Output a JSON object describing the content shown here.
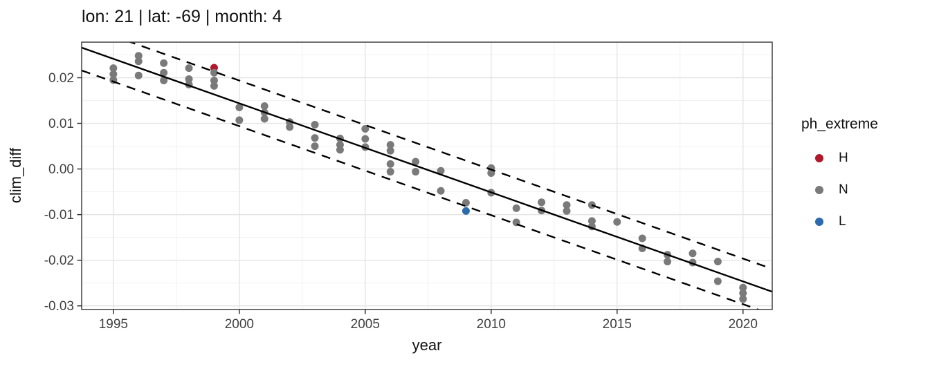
{
  "title": "lon: 21 | lat: -69 | month: 4",
  "chart_data": {
    "type": "scatter",
    "title": "lon: 21 | lat: -69 | month: 4",
    "xlabel": "year",
    "ylabel": "clim_diff",
    "xlim": [
      1993.74,
      2021.16
    ],
    "ylim": [
      -0.0308,
      0.0278
    ],
    "grid": "major+minor",
    "panel": {
      "background": "#FFFFFF",
      "border_color": "#404040",
      "major_grid_color": "#E4E4E4",
      "minor_grid_color": "#F1F1F1",
      "tick_color": "#333333"
    },
    "x_major_ticks": [
      {
        "value": 1995,
        "label": "1995"
      },
      {
        "value": 2000,
        "label": "2000"
      },
      {
        "value": 2005,
        "label": "2005"
      },
      {
        "value": 2010,
        "label": "2010"
      },
      {
        "value": 2015,
        "label": "2015"
      },
      {
        "value": 2020,
        "label": "2020"
      }
    ],
    "x_minor_ticks": [
      1997.5,
      2002.5,
      2007.5,
      2012.5,
      2017.5
    ],
    "y_major_ticks": [
      {
        "value": 0.02,
        "label": "0.02"
      },
      {
        "value": 0.01,
        "label": "0.01"
      },
      {
        "value": 0.0,
        "label": "0.00"
      },
      {
        "value": -0.01,
        "label": "-0.01"
      },
      {
        "value": -0.02,
        "label": "-0.02"
      },
      {
        "value": -0.03,
        "label": "-0.03"
      }
    ],
    "y_minor_ticks": [
      0.025,
      0.015,
      0.005,
      -0.005,
      -0.015,
      -0.025
    ],
    "point_radius": 5.5,
    "legend": {
      "title": "ph_extreme",
      "position": "right",
      "entries": [
        {
          "label": "H",
          "color": "#B2182B"
        },
        {
          "label": "N",
          "color": "#7A7A7A"
        },
        {
          "label": "L",
          "color": "#2A6BAD"
        }
      ]
    },
    "series": [
      {
        "name": "H",
        "color": "#B2182B",
        "points": [
          [
            1999,
            0.0222
          ]
        ]
      },
      {
        "name": "L",
        "color": "#2A6BAD",
        "points": [
          [
            2009,
            -0.0092
          ]
        ]
      },
      {
        "name": "N",
        "color": "#7A7A7A",
        "points": [
          [
            1995,
            0.0221
          ],
          [
            1995,
            0.0208
          ],
          [
            1995,
            0.0195
          ],
          [
            1996,
            0.0248
          ],
          [
            1996,
            0.0236
          ],
          [
            1996,
            0.0205
          ],
          [
            1997,
            0.0232
          ],
          [
            1997,
            0.0211
          ],
          [
            1997,
            0.0194
          ],
          [
            1998,
            0.0221
          ],
          [
            1998,
            0.0197
          ],
          [
            1998,
            0.0185
          ],
          [
            1999,
            0.0211
          ],
          [
            1999,
            0.0194
          ],
          [
            1999,
            0.0182
          ],
          [
            2000,
            0.0135
          ],
          [
            2000,
            0.0107
          ],
          [
            2001,
            0.0138
          ],
          [
            2001,
            0.0124
          ],
          [
            2001,
            0.011
          ],
          [
            2002,
            0.0103
          ],
          [
            2002,
            0.0092
          ],
          [
            2003,
            0.0097
          ],
          [
            2003,
            0.0068
          ],
          [
            2003,
            0.005
          ],
          [
            2004,
            0.0067
          ],
          [
            2004,
            0.0053
          ],
          [
            2004,
            0.0042
          ],
          [
            2005,
            0.0088
          ],
          [
            2005,
            0.0066
          ],
          [
            2005,
            0.0048
          ],
          [
            2006,
            0.0053
          ],
          [
            2006,
            0.004
          ],
          [
            2006,
            0.0011
          ],
          [
            2006,
            -0.0006
          ],
          [
            2007,
            0.0016
          ],
          [
            2007,
            -0.0006
          ],
          [
            2008,
            -0.0004
          ],
          [
            2008,
            -0.0048
          ],
          [
            2009,
            -0.0074
          ],
          [
            2010,
            0.0002
          ],
          [
            2010,
            -0.0009
          ],
          [
            2010,
            -0.0052
          ],
          [
            2011,
            -0.0086
          ],
          [
            2011,
            -0.0117
          ],
          [
            2012,
            -0.0073
          ],
          [
            2012,
            -0.0091
          ],
          [
            2013,
            -0.0079
          ],
          [
            2013,
            -0.0092
          ],
          [
            2014,
            -0.0079
          ],
          [
            2014,
            -0.0114
          ],
          [
            2014,
            -0.0126
          ],
          [
            2015,
            -0.0116
          ],
          [
            2016,
            -0.0152
          ],
          [
            2016,
            -0.0174
          ],
          [
            2017,
            -0.0188
          ],
          [
            2017,
            -0.0203
          ],
          [
            2018,
            -0.0185
          ],
          [
            2018,
            -0.0205
          ],
          [
            2019,
            -0.0203
          ],
          [
            2019,
            -0.0246
          ],
          [
            2020,
            -0.026
          ],
          [
            2020,
            -0.0272
          ],
          [
            2020,
            -0.0285
          ]
        ]
      }
    ],
    "fit_line": {
      "style": "solid",
      "color": "#000000",
      "x": [
        1993.74,
        2021.16
      ],
      "y": [
        0.0266,
        -0.0269
      ]
    },
    "bands": {
      "style": "dashed",
      "color": "#000000",
      "offset": 0.005
    }
  }
}
